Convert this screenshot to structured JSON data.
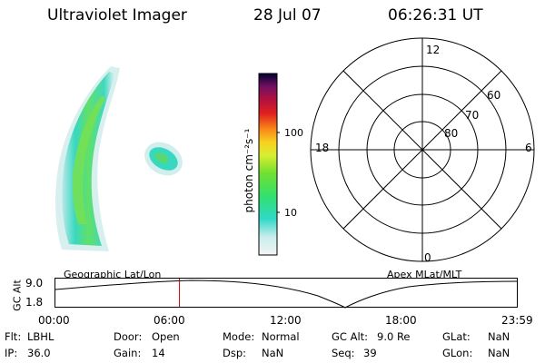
{
  "header": {
    "title": "Ultraviolet Imager",
    "date": "28 Jul 07",
    "time": "06:26:31 UT"
  },
  "colorbar": {
    "unit_label": "photon cm⁻²s⁻¹",
    "tick_labels": [
      "100",
      "10"
    ]
  },
  "polar_grid": {
    "mlt_labels": {
      "top": "12",
      "left": "18",
      "right": "6",
      "bottom": "0"
    },
    "lat_labels": [
      "60",
      "70",
      "80"
    ]
  },
  "timeline": {
    "ylabel": "GC Alt",
    "y_ticks": [
      "9.0",
      "1.8"
    ],
    "left_caption": "Geographic Lat/Lon",
    "right_caption": "Apex  MLat/MLT",
    "x_ticks": [
      "00:00",
      "06:00",
      "12:00",
      "18:00",
      "23:59"
    ],
    "marker_time_hours": 6.44,
    "marker_color": "#cc0000"
  },
  "info": {
    "flt_label": "Flt:",
    "flt_value": "LBHL",
    "ip_label": "IP:",
    "ip_value": "36.0",
    "door_label": "Door:",
    "door_value": "Open",
    "gain_label": "Gain:",
    "gain_value": "14",
    "mode_label": "Mode:",
    "mode_value": "Normal",
    "dsp_label": "Dsp:",
    "dsp_value": "NaN",
    "gcalt_label": "GC Alt:",
    "gcalt_value": "9.0 Re",
    "seq_label": "Seq:",
    "seq_value": "39",
    "glat_label": "GLat:",
    "glat_value": "NaN",
    "glon_label": "GLon:",
    "glon_value": "NaN"
  },
  "colors": {
    "aurora_low": "#c8ecec",
    "aurora_mid": "#30d8c8",
    "aurora_high": "#58e060",
    "aurora_peak": "#a0e838"
  }
}
